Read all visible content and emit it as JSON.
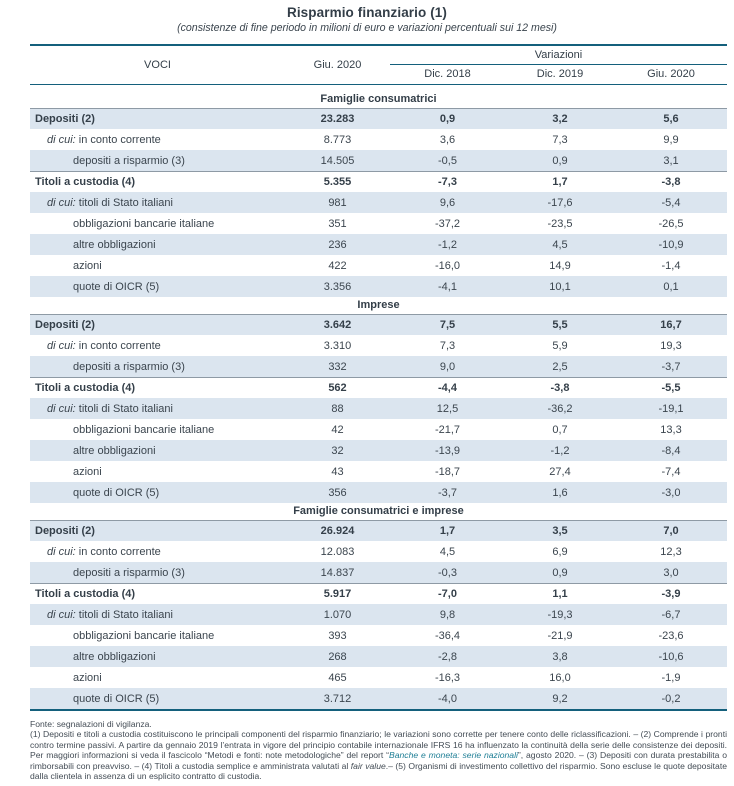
{
  "title": "Risparmio finanziario (1)",
  "subtitle": "(consistenze di fine periodo in milioni di euro e variazioni percentuali sui 12 mesi)",
  "colors": {
    "rule_teal": "#14607c",
    "row_shade": "#dbe5ef",
    "bold_row_topline": "#8e9aa5",
    "text": "#3b454e",
    "footnote_link_teal": "#1e7e95"
  },
  "table": {
    "col_voci": "VOCI",
    "col_giu2020": "Giu. 2020",
    "col_variazioni": "Variazioni",
    "subcols": [
      "Dic. 2018",
      "Dic. 2019",
      "Giu. 2020"
    ],
    "sections": [
      {
        "header": "Famiglie consumatrici",
        "rows": [
          {
            "prefix": "",
            "label": "Depositi (2)",
            "indent": 0,
            "bold": true,
            "shaded": true,
            "values": [
              "23.283",
              "0,9",
              "3,2",
              "5,6"
            ]
          },
          {
            "prefix": "di cui:",
            "label": "in conto corrente",
            "indent": 1,
            "bold": false,
            "shaded": false,
            "values": [
              "8.773",
              "3,6",
              "7,3",
              "9,9"
            ]
          },
          {
            "prefix": "",
            "label": "depositi a risparmio (3)",
            "indent": 2,
            "bold": false,
            "shaded": true,
            "values": [
              "14.505",
              "-0,5",
              "0,9",
              "3,1"
            ]
          },
          {
            "prefix": "",
            "label": "Titoli a custodia (4)",
            "indent": 0,
            "bold": true,
            "shaded": false,
            "values": [
              "5.355",
              "-7,3",
              "1,7",
              "-3,8"
            ]
          },
          {
            "prefix": "di cui:",
            "label": "titoli di Stato italiani",
            "indent": 1,
            "bold": false,
            "shaded": true,
            "values": [
              "981",
              "9,6",
              "-17,6",
              "-5,4"
            ]
          },
          {
            "prefix": "",
            "label": "obbligazioni bancarie italiane",
            "indent": 2,
            "bold": false,
            "shaded": false,
            "values": [
              "351",
              "-37,2",
              "-23,5",
              "-26,5"
            ]
          },
          {
            "prefix": "",
            "label": "altre obbligazioni",
            "indent": 2,
            "bold": false,
            "shaded": true,
            "values": [
              "236",
              "-1,2",
              "4,5",
              "-10,9"
            ]
          },
          {
            "prefix": "",
            "label": "azioni",
            "indent": 2,
            "bold": false,
            "shaded": false,
            "values": [
              "422",
              "-16,0",
              "14,9",
              "-1,4"
            ]
          },
          {
            "prefix": "",
            "label": "quote di OICR (5)",
            "indent": 2,
            "bold": false,
            "shaded": true,
            "values": [
              "3.356",
              "-4,1",
              "10,1",
              "0,1"
            ]
          }
        ]
      },
      {
        "header": "Imprese",
        "rows": [
          {
            "prefix": "",
            "label": "Depositi (2)",
            "indent": 0,
            "bold": true,
            "shaded": true,
            "values": [
              "3.642",
              "7,5",
              "5,5",
              "16,7"
            ]
          },
          {
            "prefix": "di cui:",
            "label": "in conto corrente",
            "indent": 1,
            "bold": false,
            "shaded": false,
            "values": [
              "3.310",
              "7,3",
              "5,9",
              "19,3"
            ]
          },
          {
            "prefix": "",
            "label": "depositi a risparmio (3)",
            "indent": 2,
            "bold": false,
            "shaded": true,
            "values": [
              "332",
              "9,0",
              "2,5",
              "-3,7"
            ]
          },
          {
            "prefix": "",
            "label": "Titoli a custodia (4)",
            "indent": 0,
            "bold": true,
            "shaded": false,
            "values": [
              "562",
              "-4,4",
              "-3,8",
              "-5,5"
            ]
          },
          {
            "prefix": "di cui:",
            "label": "titoli di Stato italiani",
            "indent": 1,
            "bold": false,
            "shaded": true,
            "values": [
              "88",
              "12,5",
              "-36,2",
              "-19,1"
            ]
          },
          {
            "prefix": "",
            "label": "obbligazioni bancarie italiane",
            "indent": 2,
            "bold": false,
            "shaded": false,
            "values": [
              "42",
              "-21,7",
              "0,7",
              "13,3"
            ]
          },
          {
            "prefix": "",
            "label": "altre obbligazioni",
            "indent": 2,
            "bold": false,
            "shaded": true,
            "values": [
              "32",
              "-13,9",
              "-1,2",
              "-8,4"
            ]
          },
          {
            "prefix": "",
            "label": "azioni",
            "indent": 2,
            "bold": false,
            "shaded": false,
            "values": [
              "43",
              "-18,7",
              "27,4",
              "-7,4"
            ]
          },
          {
            "prefix": "",
            "label": "quote di OICR (5)",
            "indent": 2,
            "bold": false,
            "shaded": true,
            "values": [
              "356",
              "-3,7",
              "1,6",
              "-3,0"
            ]
          }
        ]
      },
      {
        "header": "Famiglie consumatrici e imprese",
        "rows": [
          {
            "prefix": "",
            "label": "Depositi (2)",
            "indent": 0,
            "bold": true,
            "shaded": true,
            "values": [
              "26.924",
              "1,7",
              "3,5",
              "7,0"
            ]
          },
          {
            "prefix": "di cui:",
            "label": "in conto corrente",
            "indent": 1,
            "bold": false,
            "shaded": false,
            "values": [
              "12.083",
              "4,5",
              "6,9",
              "12,3"
            ]
          },
          {
            "prefix": "",
            "label": "depositi a risparmio (3)",
            "indent": 2,
            "bold": false,
            "shaded": true,
            "values": [
              "14.837",
              "-0,3",
              "0,9",
              "3,0"
            ]
          },
          {
            "prefix": "",
            "label": "Titoli a custodia (4)",
            "indent": 0,
            "bold": true,
            "shaded": false,
            "values": [
              "5.917",
              "-7,0",
              "1,1",
              "-3,9"
            ]
          },
          {
            "prefix": "di cui:",
            "label": "titoli di Stato italiani",
            "indent": 1,
            "bold": false,
            "shaded": true,
            "values": [
              "1.070",
              "9,8",
              "-19,3",
              "-6,7"
            ]
          },
          {
            "prefix": "",
            "label": "obbligazioni bancarie italiane",
            "indent": 2,
            "bold": false,
            "shaded": false,
            "values": [
              "393",
              "-36,4",
              "-21,9",
              "-23,6"
            ]
          },
          {
            "prefix": "",
            "label": "altre obbligazioni",
            "indent": 2,
            "bold": false,
            "shaded": true,
            "values": [
              "268",
              "-2,8",
              "3,8",
              "-10,6"
            ]
          },
          {
            "prefix": "",
            "label": "azioni",
            "indent": 2,
            "bold": false,
            "shaded": false,
            "values": [
              "465",
              "-16,3",
              "16,0",
              "-1,9"
            ]
          },
          {
            "prefix": "",
            "label": "quote di OICR (5)",
            "indent": 2,
            "bold": false,
            "shaded": true,
            "values": [
              "3.712",
              "-4,0",
              "9,2",
              "-0,2"
            ]
          }
        ]
      }
    ]
  },
  "footnotes": {
    "fonte": "Fonte: segnalazioni di vigilanza.",
    "note_segments": [
      {
        "s": "normal",
        "t": "(1) Depositi e titoli a custodia costituiscono le principali componenti del risparmio finanziario; le variazioni sono corrette per tenere conto delle riclassificazioni. – (2) Comprende i pronti contro termine passivi. A partire da gennaio 2019 l’entrata in vigore del principio contabile internazionale IFRS 16 ha influenzato la continuità della serie delle consistenze dei depositi. Per maggiori informazioni si veda il fascicolo “Metodi e fonti: note metodologiche” del report “"
      },
      {
        "s": "teal",
        "t": "Banche e moneta: serie nazionali"
      },
      {
        "s": "normal",
        "t": "”, agosto 2020. – (3) Depositi con durata prestabilita o rimborsabili con preavviso. – (4) Titoli a custodia semplice e amministrata valutati al "
      },
      {
        "s": "italic",
        "t": "fair value"
      },
      {
        "s": "normal",
        "t": ".– (5) Organismi di investimento collettivo del risparmio. Sono escluse le quote depositate dalla clientela in assenza di un esplicito contratto di custodia."
      }
    ]
  }
}
